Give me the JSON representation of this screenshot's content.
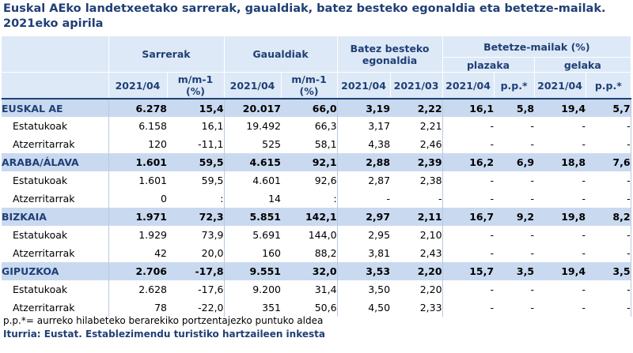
{
  "title": "Euskal AEko landetxeetako sarrerak, gaualdiak, batez besteko egonaldia eta betetze-mailak. 2021eko apirila",
  "header": {
    "sarrerak": "Sarrerak",
    "gaualdiak": "Gaualdiak",
    "egonaldia": "Batez besteko egonaldia",
    "betetze": "Betetze-mailak (%)",
    "plazaka": "plazaka",
    "gelaka": "gelaka",
    "c2021_04": "2021/04",
    "c2021_03": "2021/03",
    "mm1": "m/m-1 (%)",
    "pp": "p.p.*"
  },
  "rows": [
    {
      "label": "EUSKAL AE",
      "type": "group",
      "v": [
        "6.278",
        "15,4",
        "20.017",
        "66,0",
        "3,19",
        "2,22",
        "16,1",
        "5,8",
        "19,4",
        "5,7"
      ]
    },
    {
      "label": "Estatukoak",
      "type": "sub",
      "v": [
        "6.158",
        "16,1",
        "19.492",
        "66,3",
        "3,17",
        "2,21",
        "-",
        "-",
        "-",
        "-"
      ]
    },
    {
      "label": "Atzerritarrak",
      "type": "sub",
      "v": [
        "120",
        "-11,1",
        "525",
        "58,1",
        "4,38",
        "2,46",
        "-",
        "-",
        "-",
        "-"
      ]
    },
    {
      "label": "ARABA/ÁLAVA",
      "type": "group",
      "v": [
        "1.601",
        "59,5",
        "4.615",
        "92,1",
        "2,88",
        "2,39",
        "16,2",
        "6,9",
        "18,8",
        "7,6"
      ]
    },
    {
      "label": "Estatukoak",
      "type": "sub",
      "v": [
        "1.601",
        "59,5",
        "4.601",
        "92,6",
        "2,87",
        "2,38",
        "-",
        "-",
        "-",
        "-"
      ]
    },
    {
      "label": "Atzerritarrak",
      "type": "sub",
      "v": [
        "0",
        ":",
        "14",
        ":",
        "-",
        "-",
        "-",
        "-",
        "-",
        "-"
      ]
    },
    {
      "label": "BIZKAIA",
      "type": "group",
      "v": [
        "1.971",
        "72,3",
        "5.851",
        "142,1",
        "2,97",
        "2,11",
        "16,7",
        "9,2",
        "19,8",
        "8,2"
      ]
    },
    {
      "label": "Estatukoak",
      "type": "sub",
      "v": [
        "1.929",
        "73,9",
        "5.691",
        "144,0",
        "2,95",
        "2,10",
        "-",
        "-",
        "-",
        "-"
      ]
    },
    {
      "label": "Atzerritarrak",
      "type": "sub",
      "v": [
        "42",
        "20,0",
        "160",
        "88,2",
        "3,81",
        "2,43",
        "-",
        "-",
        "-",
        "-"
      ]
    },
    {
      "label": "GIPUZKOA",
      "type": "group",
      "v": [
        "2.706",
        "-17,8",
        "9.551",
        "32,0",
        "3,53",
        "2,20",
        "15,7",
        "3,5",
        "19,4",
        "3,5"
      ]
    },
    {
      "label": "Estatukoak",
      "type": "sub",
      "v": [
        "2.628",
        "-17,6",
        "9.200",
        "31,4",
        "3,50",
        "2,20",
        "-",
        "-",
        "-",
        "-"
      ]
    },
    {
      "label": "Atzerritarrak",
      "type": "sub",
      "v": [
        "78",
        "-22,0",
        "351",
        "50,6",
        "4,50",
        "2,33",
        "-",
        "-",
        "-",
        "-"
      ]
    }
  ],
  "footnote": "p.p.*= aurreko  hilabeteko berarekiko portzentajezko puntuko aldea",
  "source": "Iturria: Eustat. Establezimendu turistiko hartzaileen inkesta"
}
